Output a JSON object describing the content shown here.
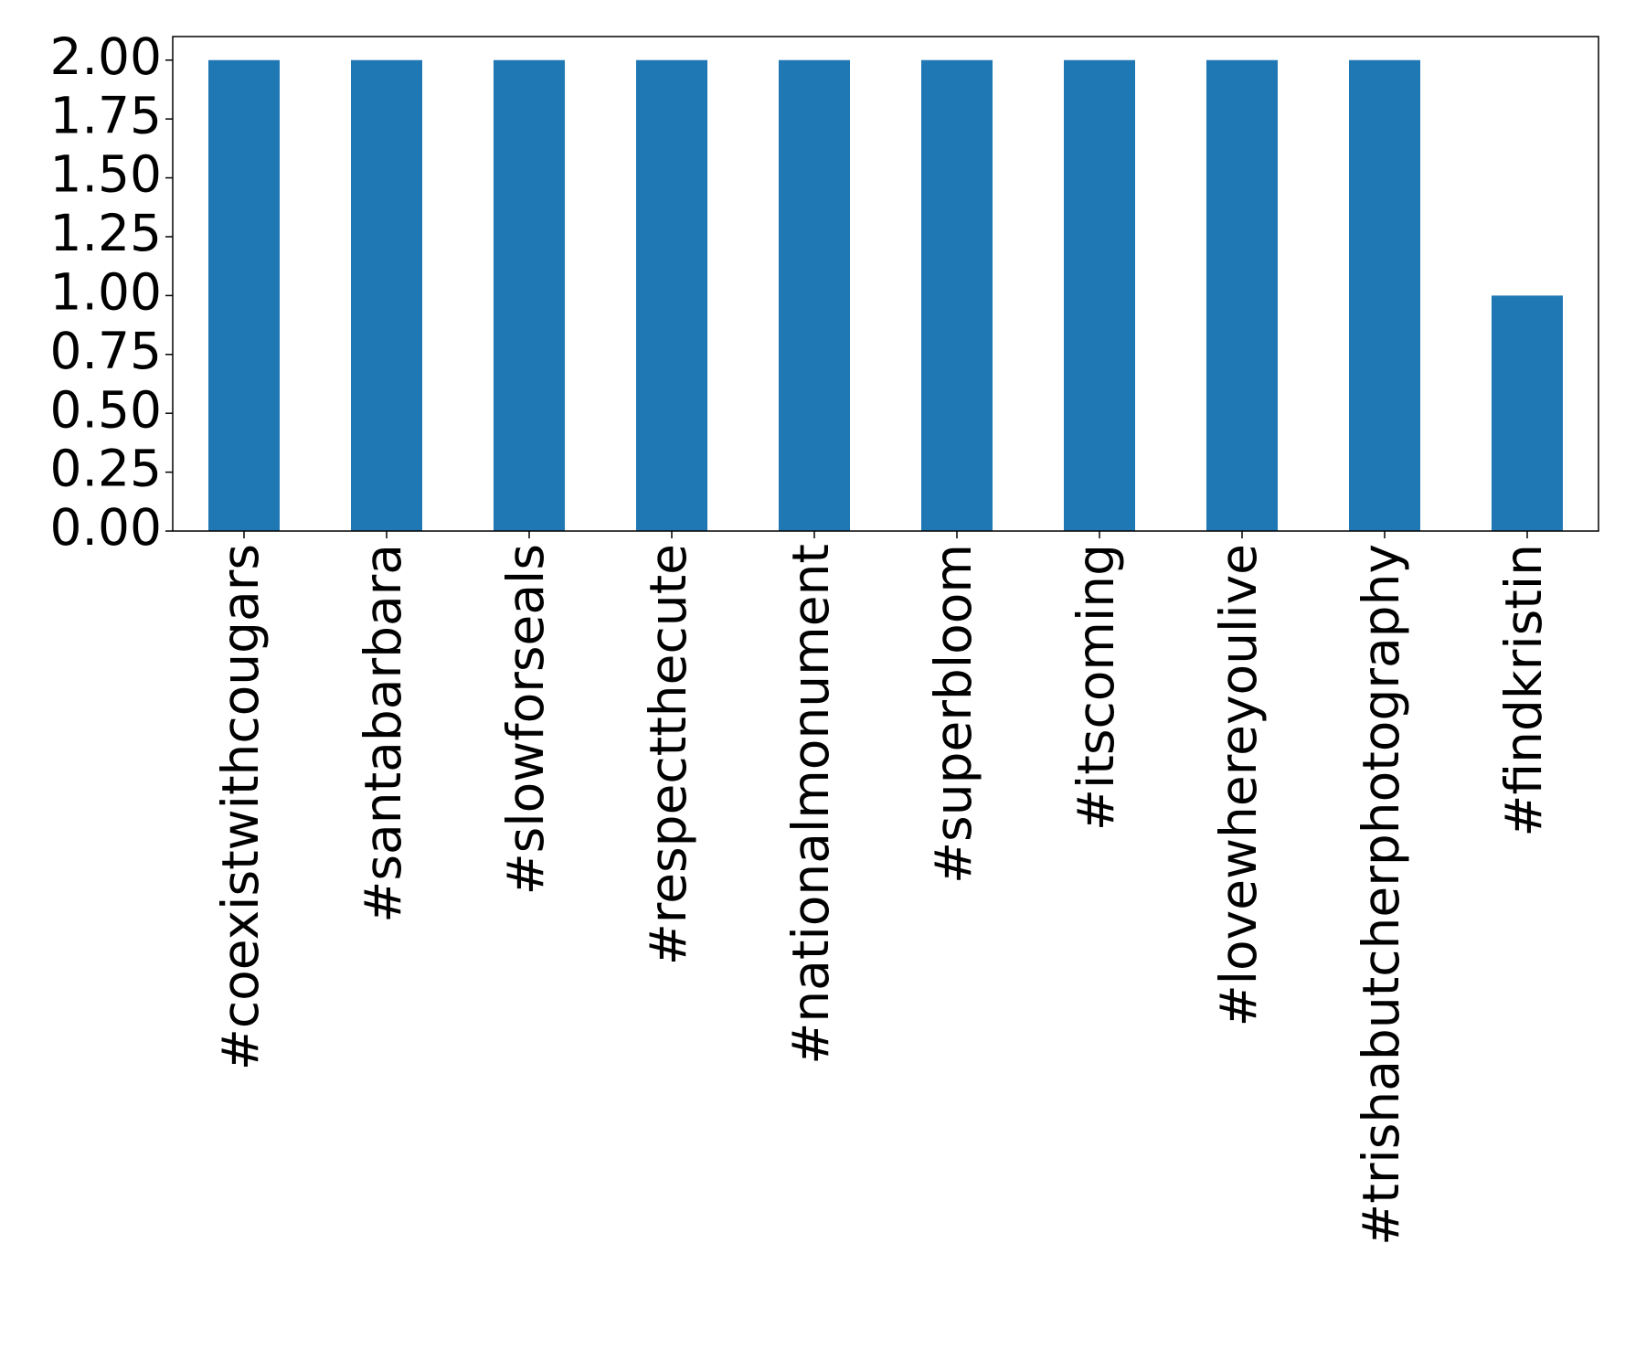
{
  "chart_data": {
    "type": "bar",
    "categories": [
      "#coexistwithcougars",
      "#santabarbara",
      "#slowforseals",
      "#respectthecute",
      "#nationalmonument",
      "#superbloom",
      "#itscoming",
      "#lovewhereyoulive",
      "#trishabutcherphotography",
      "#findkristin"
    ],
    "values": [
      2,
      2,
      2,
      2,
      2,
      2,
      2,
      2,
      2,
      1
    ],
    "color": "#1f77b4",
    "ylim": [
      0,
      2.1
    ],
    "yticks": [
      {
        "value": 0,
        "label": "0.00"
      },
      {
        "value": 0.25,
        "label": "0.25"
      },
      {
        "value": 0.5,
        "label": "0.50"
      },
      {
        "value": 0.75,
        "label": "0.75"
      },
      {
        "value": 1,
        "label": "1.00"
      },
      {
        "value": 1.25,
        "label": "1.25"
      },
      {
        "value": 1.5,
        "label": "1.50"
      },
      {
        "value": 1.75,
        "label": "1.75"
      },
      {
        "value": 2,
        "label": "2.00"
      }
    ],
    "grid": false
  }
}
